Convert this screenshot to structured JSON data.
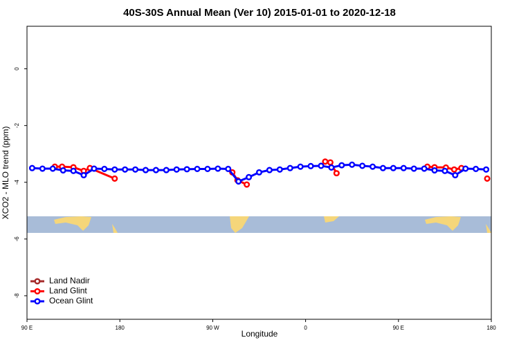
{
  "chart_data": {
    "type": "line",
    "title": "40S-30S Annual Mean (Ver 10)   2015-01-01 to 2020-12-18",
    "x_label": "Longitude",
    "y_label": "XCO2 - MLO trend (ppm)",
    "xlim": [
      90,
      540
    ],
    "ylim": [
      -8.83,
      1.5
    ],
    "xticks": [
      {
        "value": 90,
        "label": "90 E"
      },
      180,
      {
        "value": 270,
        "label": "90 W"
      },
      {
        "value": 360,
        "label": "0"
      },
      {
        "value": 450,
        "label": "90 E"
      },
      {
        "value": 540,
        "label": "180"
      }
    ],
    "yticks": [
      0,
      -2,
      -4,
      -6,
      -8
    ],
    "legend": "bottom-left",
    "series": [
      {
        "name": "Land Nadir",
        "color": "#a52a2a",
        "x": [],
        "values": []
      },
      {
        "name": "Land Glint",
        "color": "#ff0000",
        "x": [
          117,
          124,
          135,
          145,
          151,
          175,
          200,
          289,
          294,
          303,
          340,
          379,
          384,
          390,
          430,
          478,
          485,
          496,
          504,
          511,
          520,
          536
        ],
        "values": [
          -3.45,
          -3.45,
          -3.47,
          -3.6,
          -3.5,
          -3.87,
          null,
          -3.65,
          -3.93,
          -4.08,
          null,
          -3.27,
          -3.3,
          -3.68,
          null,
          -3.45,
          -3.47,
          -3.48,
          -3.55,
          -3.5,
          null,
          -3.87
        ]
      },
      {
        "name": "Ocean Glint",
        "color": "#0000ff",
        "x": [
          95,
          105,
          115,
          125,
          135,
          145,
          155,
          165,
          175,
          185,
          195,
          205,
          215,
          225,
          235,
          245,
          255,
          265,
          275,
          285,
          295,
          305,
          315,
          325,
          335,
          345,
          355,
          365,
          375,
          385,
          395,
          405,
          415,
          425,
          435,
          445,
          455,
          465,
          475,
          485,
          495,
          505,
          515,
          525,
          535
        ],
        "values": [
          -3.5,
          -3.52,
          -3.52,
          -3.58,
          -3.6,
          -3.75,
          -3.52,
          -3.53,
          -3.55,
          -3.55,
          -3.55,
          -3.57,
          -3.57,
          -3.57,
          -3.55,
          -3.54,
          -3.53,
          -3.53,
          -3.52,
          -3.53,
          -3.97,
          -3.82,
          -3.65,
          -3.57,
          -3.55,
          -3.5,
          -3.45,
          -3.43,
          -3.42,
          -3.48,
          -3.4,
          -3.38,
          -3.42,
          -3.45,
          -3.5,
          -3.5,
          -3.5,
          -3.52,
          -3.52,
          -3.58,
          -3.6,
          -3.75,
          -3.52,
          -3.53,
          -3.55
        ]
      }
    ]
  }
}
